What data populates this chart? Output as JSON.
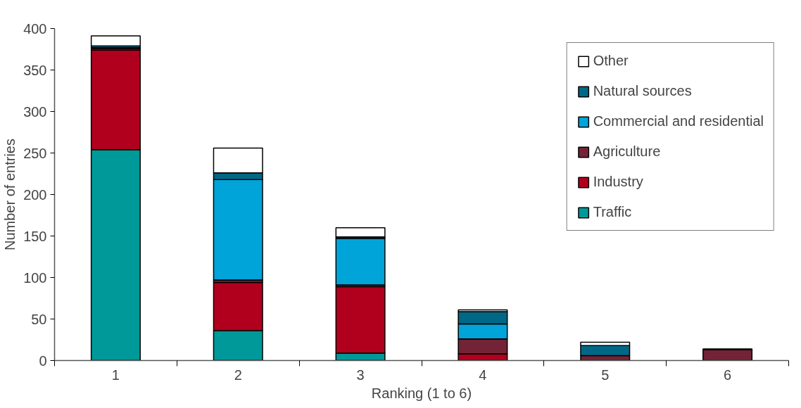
{
  "chart_data": {
    "type": "bar",
    "stacked": true,
    "xlabel": "Ranking (1 to 6)",
    "ylabel": "Number of entries",
    "categories": [
      "1",
      "2",
      "3",
      "4",
      "5",
      "6"
    ],
    "series": [
      {
        "name": "Traffic",
        "color": "#009999",
        "values": [
          254,
          36,
          9,
          null,
          0,
          0
        ]
      },
      {
        "name": "Industry",
        "color": "#b0001e",
        "values": [
          120,
          58,
          80,
          8,
          null,
          0
        ]
      },
      {
        "name": "Agriculture",
        "color": "#722436",
        "values": [
          2,
          3,
          2,
          18,
          6,
          13
        ]
      },
      {
        "name": "Commercial and residential",
        "color": "#00a4d8",
        "values": [
          1,
          121,
          56,
          18,
          0,
          0
        ]
      },
      {
        "name": "Natural sources",
        "color": "#006886",
        "values": [
          2,
          8,
          2,
          15,
          12,
          1
        ]
      },
      {
        "name": "Other",
        "color": "#ffffff",
        "values": [
          12,
          30,
          11,
          2,
          4,
          0
        ]
      }
    ],
    "ylim": [
      0,
      400
    ],
    "yticks": [
      0,
      50,
      100,
      150,
      200,
      250,
      300,
      350,
      400
    ],
    "grid": false,
    "legend": "top right"
  }
}
